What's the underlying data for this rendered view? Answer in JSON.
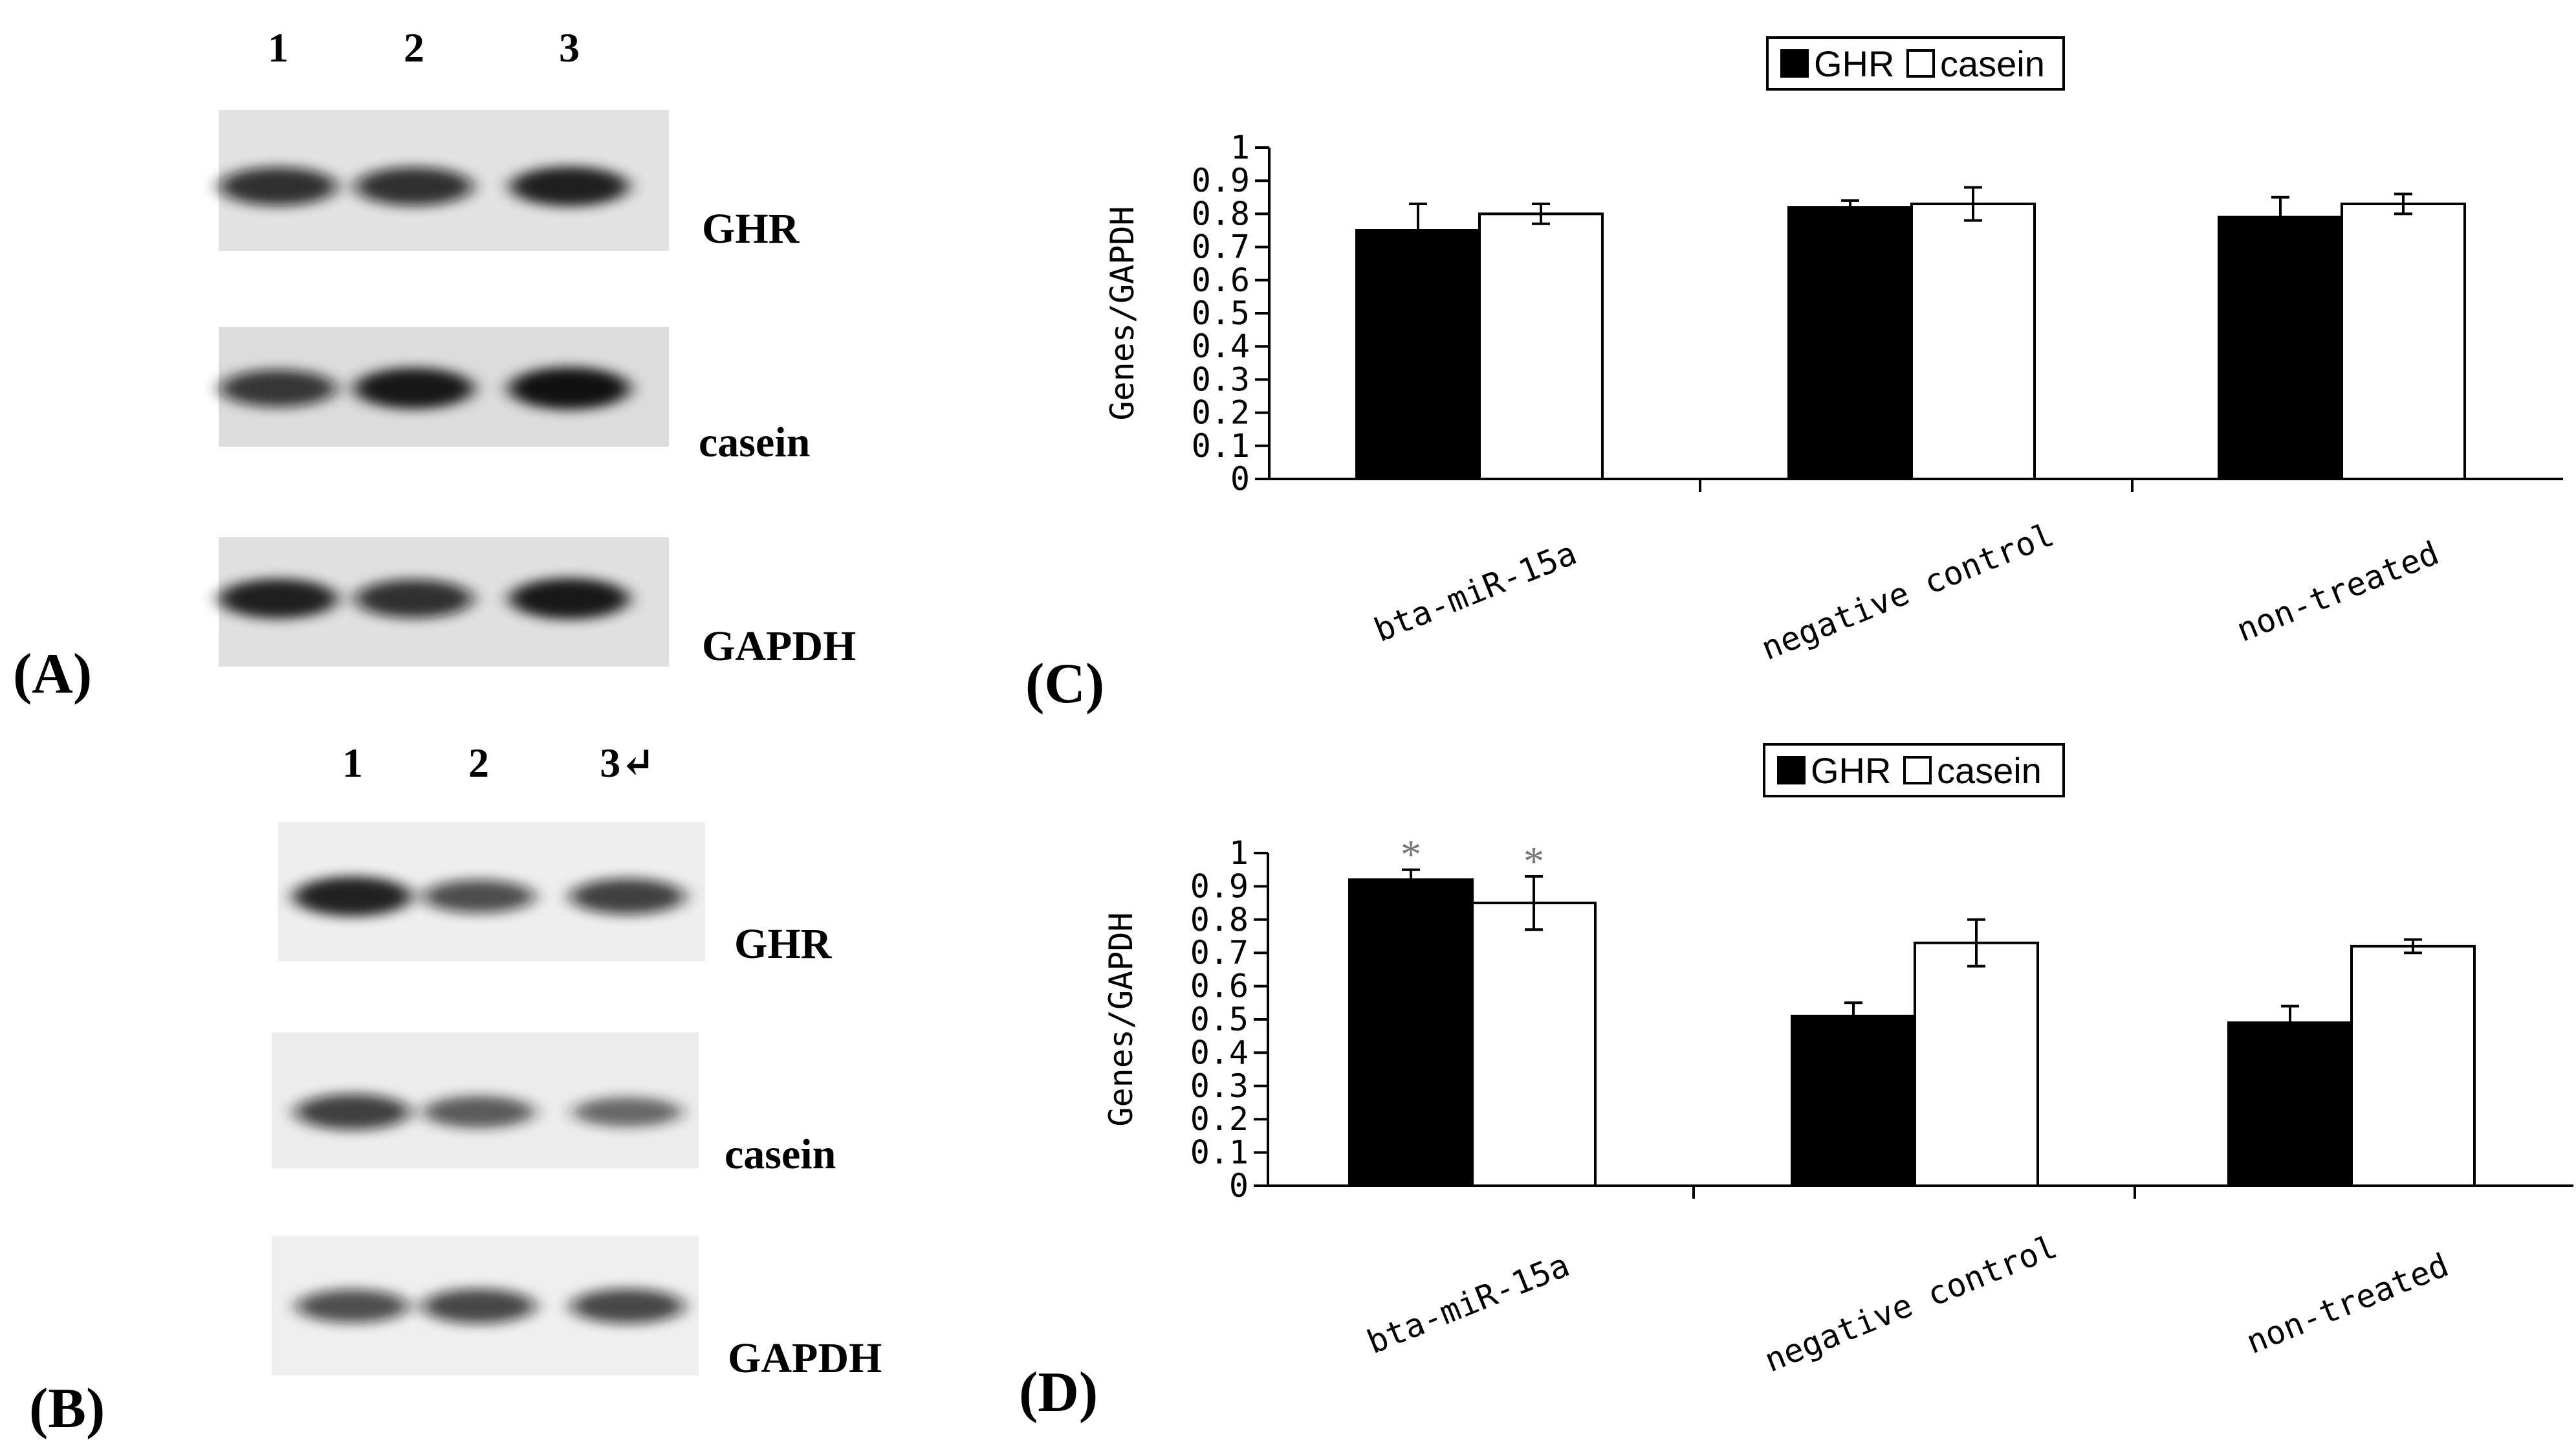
{
  "panels": {
    "A": {
      "label": "(A)",
      "lane_labels": [
        "1",
        "2",
        "3"
      ],
      "blots": [
        {
          "name": "GHR",
          "label": "GHR",
          "intensities": [
            0.8,
            0.8,
            0.85
          ]
        },
        {
          "name": "casein",
          "label": "casein",
          "intensities": [
            0.75,
            0.9,
            0.95
          ]
        },
        {
          "name": "GAPDH",
          "label": "GAPDH",
          "intensities": [
            0.85,
            0.8,
            0.9
          ]
        }
      ]
    },
    "B": {
      "label": "(B)",
      "lane_labels": [
        "1",
        "2",
        "3↵"
      ],
      "blots": [
        {
          "name": "GHR",
          "label": "GHR",
          "intensities": [
            0.85,
            0.6,
            0.7
          ]
        },
        {
          "name": "casein",
          "label": "casein",
          "intensities": [
            0.7,
            0.55,
            0.45
          ]
        },
        {
          "name": "GAPDH",
          "label": "GAPDH",
          "intensities": [
            0.6,
            0.65,
            0.65
          ]
        }
      ]
    },
    "C": {
      "label": "(C)"
    },
    "D": {
      "label": "(D)"
    }
  },
  "chart_data": [
    {
      "type": "bar",
      "panel": "C",
      "categories": [
        "bta-miR-15a",
        "negative control",
        "non-treated"
      ],
      "series": [
        {
          "name": "GHR",
          "values": [
            0.75,
            0.82,
            0.79
          ],
          "errors": [
            0.08,
            0.02,
            0.06
          ],
          "color": "#000000"
        },
        {
          "name": "casein",
          "values": [
            0.8,
            0.83,
            0.83
          ],
          "errors": [
            0.03,
            0.05,
            0.03
          ],
          "color": "#ffffff"
        }
      ],
      "ylabel": "Genes/GAPDH",
      "ylim": [
        0,
        1
      ],
      "yticks": [
        "0",
        "0.1",
        "0.2",
        "0.3",
        "0.4",
        "0.5",
        "0.6",
        "0.7",
        "0.8",
        "0.9",
        "1"
      ],
      "legend": [
        "GHR",
        "casein"
      ],
      "legend_position": "top",
      "markers": [
        "",
        ""
      ],
      "grid": false
    },
    {
      "type": "bar",
      "panel": "D",
      "categories": [
        "bta-miR-15a",
        "negative control",
        "non-treated"
      ],
      "series": [
        {
          "name": "GHR",
          "values": [
            0.92,
            0.51,
            0.49
          ],
          "errors": [
            0.03,
            0.04,
            0.05
          ],
          "color": "#000000"
        },
        {
          "name": "casein",
          "values": [
            0.85,
            0.73,
            0.72
          ],
          "errors": [
            0.08,
            0.07,
            0.02
          ],
          "color": "#ffffff"
        }
      ],
      "ylabel": "Genes/GAPDH",
      "ylim": [
        0,
        1
      ],
      "yticks": [
        "0",
        "0.1",
        "0.2",
        "0.3",
        "0.4",
        "0.5",
        "0.6",
        "0.7",
        "0.8",
        "0.9",
        "1"
      ],
      "legend": [
        "GHR",
        "casein"
      ],
      "legend_position": "top",
      "markers": [
        "*",
        "*"
      ],
      "grid": false
    }
  ]
}
